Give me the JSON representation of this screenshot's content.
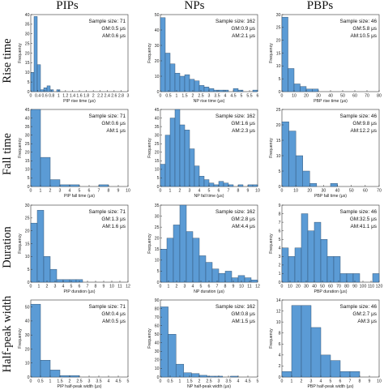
{
  "column_titles": [
    "PIPs",
    "NPs",
    "PBPs"
  ],
  "row_titles": [
    "Rise time",
    "Fall time",
    "Duration",
    "Half-peak width"
  ],
  "colors": {
    "bar_fill": "#5b9bd5",
    "bar_stroke": "#2f4f6f",
    "axis": "#333333"
  },
  "chart_data": [
    {
      "type": "bar",
      "id": "pip-rise",
      "xlabel": "PIP rise time (μs)",
      "ylabel": "Frequency",
      "xlim": [
        0,
        6
      ],
      "ylim": [
        0,
        40
      ],
      "bin_width": 0.2,
      "x_start": 0,
      "xticks": [
        "0",
        "0.4",
        "0.6",
        "0.8",
        "1",
        "1.2",
        "1.4",
        "1.6",
        "1.8",
        "2",
        "2.2",
        "2.4",
        "2.6",
        "2.8",
        "3"
      ],
      "yticks": [
        0,
        5,
        10,
        15,
        20,
        25,
        30,
        35,
        40
      ],
      "values": [
        10,
        39,
        14,
        1,
        2,
        3,
        1,
        0,
        1
      ],
      "stats": [
        "Sample size: 71",
        "GM:0.5 μs",
        "AM:0.6 μs"
      ]
    },
    {
      "type": "bar",
      "id": "np-rise",
      "xlabel": "NP rise time (μs)",
      "ylabel": "Frequency",
      "xlim": [
        0,
        8
      ],
      "ylim": [
        0,
        50
      ],
      "bin_width": 0.4,
      "x_start": 0,
      "xticks": [
        "0",
        "0.5",
        "1",
        "1.5",
        "2",
        "2.5",
        "3",
        "3.5",
        "4",
        "4.5",
        "5",
        "5.5",
        "6"
      ],
      "yticks": [
        0,
        10,
        20,
        30,
        40,
        50
      ],
      "values": [
        48,
        25,
        18,
        12,
        10,
        11,
        8,
        7,
        4,
        3,
        2,
        1,
        1,
        1,
        0,
        2,
        1,
        0,
        0,
        1
      ],
      "stats": [
        "Sample size: 162",
        "GM:0.9 μs",
        "AM:2.1 μs"
      ]
    },
    {
      "type": "bar",
      "id": "pbp-rise",
      "xlabel": "PBP rise time (μs)",
      "ylabel": "Frequency",
      "xlim": [
        0,
        80
      ],
      "ylim": [
        0,
        30
      ],
      "bin_width": 5,
      "x_start": 0,
      "xticks": [
        "0",
        "10",
        "20",
        "30",
        "40",
        "50",
        "60",
        "70",
        "80"
      ],
      "yticks": [
        0,
        5,
        10,
        15,
        20,
        25,
        30
      ],
      "values": [
        29,
        9,
        3,
        2,
        1,
        1,
        0,
        0,
        0,
        0,
        0,
        0,
        0,
        0,
        0,
        0
      ],
      "stats": [
        "Sample size: 46",
        "GM:5.8 μs",
        "AM:10.5 μs"
      ]
    },
    {
      "type": "bar",
      "id": "pip-fall",
      "xlabel": "PIP fall time (μs)",
      "ylabel": "Frequency",
      "xlim": [
        0,
        10
      ],
      "ylim": [
        0,
        45
      ],
      "bin_width": 1,
      "x_start": 0,
      "xticks": [
        "0",
        "1",
        "2",
        "3",
        "4",
        "5",
        "6",
        "7",
        "8",
        "9",
        "10"
      ],
      "yticks": [
        0,
        5,
        10,
        15,
        20,
        25,
        30,
        35,
        40,
        45
      ],
      "values": [
        45,
        17,
        4,
        1,
        1,
        0,
        0,
        1,
        0,
        0
      ],
      "stats": [
        "Sample size: 71",
        "GM:0.6 μs",
        "AM:1 μs"
      ]
    },
    {
      "type": "bar",
      "id": "np-fall",
      "xlabel": "NP fall time (μs)",
      "ylabel": "Frequency",
      "xlim": [
        0,
        10
      ],
      "ylim": [
        0,
        45
      ],
      "bin_width": 0.5,
      "x_start": 0,
      "xticks": [
        "0",
        "1",
        "2",
        "3",
        "4",
        "5",
        "6",
        "7",
        "8",
        "9",
        "10"
      ],
      "yticks": [
        0,
        5,
        10,
        15,
        20,
        25,
        30,
        35,
        40,
        45
      ],
      "values": [
        13,
        30,
        40,
        45,
        36,
        33,
        22,
        12,
        6,
        4,
        2,
        1,
        3,
        2,
        1,
        0,
        1,
        0,
        1,
        1
      ],
      "stats": [
        "Sample size: 162",
        "GM:1.6 μs",
        "AM:2.3 μs"
      ]
    },
    {
      "type": "bar",
      "id": "pbp-fall",
      "xlabel": "PBP fall time (μs)",
      "ylabel": "Frequency",
      "xlim": [
        0,
        70
      ],
      "ylim": [
        0,
        25
      ],
      "bin_width": 5,
      "x_start": 0,
      "xticks": [
        "0",
        "10",
        "20",
        "30",
        "40",
        "50",
        "60",
        "70"
      ],
      "yticks": [
        0,
        5,
        10,
        15,
        20,
        25
      ],
      "values": [
        21,
        18,
        10,
        5,
        1,
        0,
        0,
        1,
        0,
        0,
        0,
        0,
        0,
        0
      ],
      "stats": [
        "Sample size: 46",
        "GM:9.8 μs",
        "AM:12.2 μs"
      ]
    },
    {
      "type": "bar",
      "id": "pip-duration",
      "xlabel": "PIP duration (μs)",
      "ylabel": "Frequency",
      "xlim": [
        0,
        12
      ],
      "ylim": [
        0,
        30
      ],
      "bin_width": 0.8,
      "x_start": 0,
      "xticks": [
        "0",
        "1",
        "2",
        "3",
        "4",
        "5",
        "6",
        "7",
        "8",
        "9",
        "10",
        "11",
        "12"
      ],
      "yticks": [
        0,
        5,
        10,
        15,
        20,
        25,
        30
      ],
      "values": [
        23,
        28,
        10,
        5,
        1,
        1,
        1,
        1,
        0,
        0,
        0,
        0,
        0,
        0,
        0
      ],
      "stats": [
        "Sample size: 71",
        "GM:1.3 μs",
        "AM:1.6 μs"
      ]
    },
    {
      "type": "bar",
      "id": "np-duration",
      "xlabel": "NP duration (μs)",
      "ylabel": "Frequency",
      "xlim": [
        0,
        12
      ],
      "ylim": [
        0,
        35
      ],
      "bin_width": 0.8,
      "x_start": 0,
      "xticks": [
        "0",
        "1",
        "2",
        "3",
        "4",
        "5",
        "6",
        "7",
        "8",
        "9",
        "10",
        "11",
        "12"
      ],
      "yticks": [
        0,
        5,
        10,
        15,
        20,
        25,
        30,
        35
      ],
      "values": [
        15,
        20,
        26,
        35,
        23,
        20,
        12,
        9,
        6,
        4,
        5,
        2,
        3,
        2,
        1
      ],
      "stats": [
        "Sample size: 162",
        "GM:2.8 μs",
        "AM:4.4 μs"
      ]
    },
    {
      "type": "bar",
      "id": "pbp-duration",
      "xlabel": "PBP duration (μs)",
      "ylabel": "Frequency",
      "xlim": [
        0,
        120
      ],
      "ylim": [
        0,
        9
      ],
      "bin_width": 8,
      "x_start": 0,
      "xticks": [
        "0",
        "10",
        "20",
        "30",
        "40",
        "50",
        "60",
        "70",
        "80",
        "90",
        "100",
        "110",
        "120"
      ],
      "yticks": [
        0,
        1,
        2,
        3,
        4,
        5,
        6,
        7,
        8,
        9
      ],
      "values": [
        4,
        3,
        4,
        8,
        6,
        7,
        5,
        3,
        3,
        1,
        1,
        1,
        0,
        0,
        1
      ],
      "stats": [
        "Sample size: 46",
        "GM:32.5 μs",
        "AM:41.1 μs"
      ]
    },
    {
      "type": "bar",
      "id": "pip-half",
      "xlabel": "PIP half-peak width (μs)",
      "ylabel": "Frequency",
      "xlim": [
        0,
        5
      ],
      "ylim": [
        0,
        55
      ],
      "bin_width": 0.5,
      "x_start": 0,
      "xticks": [
        "0",
        "0.5",
        "1",
        "1.5",
        "2",
        "2.5",
        "3",
        "3.5",
        "4",
        "4.5",
        "5"
      ],
      "yticks": [
        0,
        10,
        20,
        30,
        40,
        50
      ],
      "values": [
        52,
        12,
        5,
        1,
        1,
        0,
        0,
        0,
        0,
        0
      ],
      "stats": [
        "Sample size: 71",
        "GM:0.4 μs",
        "AM:0.5 μs"
      ]
    },
    {
      "type": "bar",
      "id": "np-half",
      "xlabel": "NP half-peak width (μs)",
      "ylabel": "Frequency",
      "xlim": [
        0,
        5
      ],
      "ylim": [
        0,
        90
      ],
      "bin_width": 0.4,
      "x_start": 0,
      "xticks": [
        "0",
        "0.5",
        "1",
        "1.5",
        "2",
        "2.5",
        "3",
        "3.5",
        "4",
        "4.5",
        "5"
      ],
      "yticks": [
        0,
        10,
        20,
        30,
        40,
        50,
        60,
        70,
        80,
        90
      ],
      "values": [
        82,
        50,
        15,
        5,
        4,
        2,
        1,
        1,
        0,
        1,
        0,
        0
      ],
      "stats": [
        "Sample size: 162",
        "GM:0.8 μs",
        "AM:1.5 μs"
      ]
    },
    {
      "type": "bar",
      "id": "pbp-half",
      "xlabel": "PBP half-peak width (μs)",
      "ylabel": "Frequency",
      "xlim": [
        0,
        10
      ],
      "ylim": [
        0,
        14
      ],
      "bin_width": 1,
      "x_start": 0,
      "xticks": [
        "0",
        "1",
        "2",
        "3",
        "4",
        "5",
        "6",
        "7",
        "8",
        "9",
        "10"
      ],
      "yticks": [
        0,
        2,
        4,
        6,
        8,
        10,
        12,
        14
      ],
      "values": [
        1,
        13,
        13,
        9,
        4,
        3,
        1,
        1,
        0,
        0
      ],
      "stats": [
        "Sample size: 46",
        "GM:2.7 μs",
        "AM:3 μs"
      ]
    }
  ]
}
